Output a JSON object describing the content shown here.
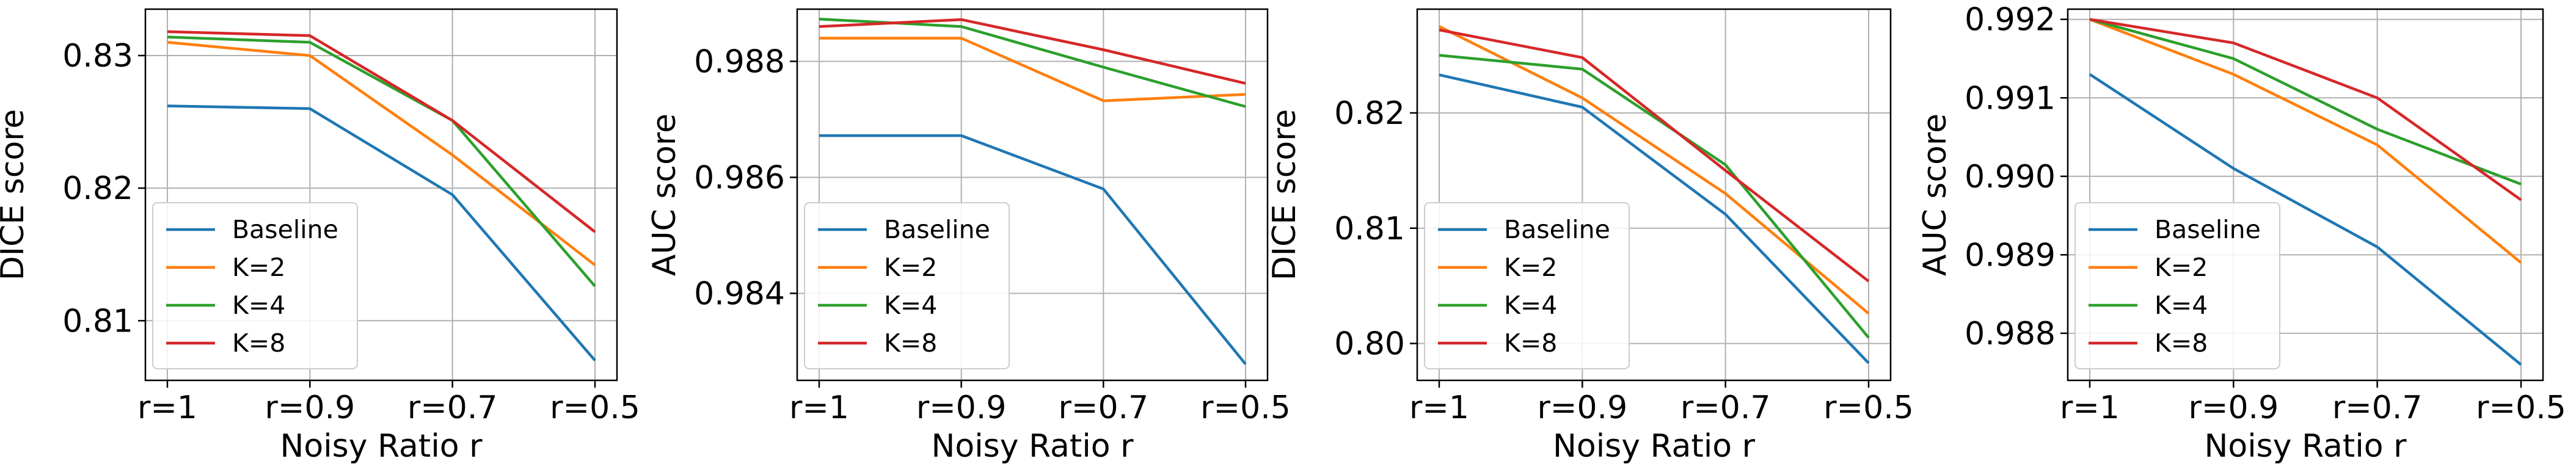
{
  "series_colors": {
    "Baseline": "#1f77b4",
    "K=2": "#ff7f0e",
    "K=4": "#2ca02c",
    "K=8": "#d62728"
  },
  "chart_data": [
    {
      "type": "line",
      "categories": [
        "r=1",
        "r=0.9",
        "r=0.7",
        "r=0.5"
      ],
      "xlabel": "Noisy Ratio r",
      "ylabel": "DICE score",
      "ylim": [
        0.8055,
        0.8335
      ],
      "yticks": [
        0.81,
        0.82,
        0.83
      ],
      "ytick_labels": [
        "0.81",
        "0.82",
        "0.83"
      ],
      "grid": true,
      "legend_position": "lower-left",
      "series": [
        {
          "name": "Baseline",
          "values": [
            0.8262,
            0.826,
            0.8195,
            0.807
          ]
        },
        {
          "name": "K=2",
          "values": [
            0.831,
            0.83,
            0.8225,
            0.8142
          ]
        },
        {
          "name": "K=4",
          "values": [
            0.8314,
            0.831,
            0.8251,
            0.8126
          ]
        },
        {
          "name": "K=8",
          "values": [
            0.8318,
            0.8315,
            0.8251,
            0.8167
          ]
        }
      ]
    },
    {
      "type": "line",
      "categories": [
        "r=1",
        "r=0.9",
        "r=0.7",
        "r=0.5"
      ],
      "xlabel": "Noisy Ratio r",
      "ylabel": "AUC score",
      "ylim": [
        0.9825,
        0.9889
      ],
      "yticks": [
        0.984,
        0.986,
        0.988
      ],
      "ytick_labels": [
        "0.984",
        "0.986",
        "0.988"
      ],
      "grid": true,
      "legend_position": "lower-left",
      "series": [
        {
          "name": "Baseline",
          "values": [
            0.98672,
            0.98672,
            0.9858,
            0.98278
          ]
        },
        {
          "name": "K=2",
          "values": [
            0.9884,
            0.9884,
            0.98732,
            0.98743
          ]
        },
        {
          "name": "K=4",
          "values": [
            0.98873,
            0.9886,
            0.9879,
            0.98722
          ]
        },
        {
          "name": "K=8",
          "values": [
            0.9886,
            0.98872,
            0.9882,
            0.98762
          ]
        }
      ]
    },
    {
      "type": "line",
      "categories": [
        "r=1",
        "r=0.9",
        "r=0.7",
        "r=0.5"
      ],
      "xlabel": "Noisy Ratio r",
      "ylabel": "DICE score",
      "ylim": [
        0.7968,
        0.829
      ],
      "yticks": [
        0.8,
        0.81,
        0.82
      ],
      "ytick_labels": [
        "0.80",
        "0.81",
        "0.82"
      ],
      "grid": true,
      "legend_position": "lower-left",
      "series": [
        {
          "name": "Baseline",
          "values": [
            0.8233,
            0.8205,
            0.8112,
            0.7983
          ]
        },
        {
          "name": "K=2",
          "values": [
            0.8275,
            0.8213,
            0.813,
            0.8026
          ]
        },
        {
          "name": "K=4",
          "values": [
            0.825,
            0.8238,
            0.8155,
            0.8005
          ]
        },
        {
          "name": "K=8",
          "values": [
            0.8272,
            0.8248,
            0.815,
            0.8054
          ]
        }
      ]
    },
    {
      "type": "line",
      "categories": [
        "r=1",
        "r=0.9",
        "r=0.7",
        "r=0.5"
      ],
      "xlabel": "Noisy Ratio r",
      "ylabel": "AUC score",
      "ylim": [
        0.9874,
        0.99213
      ],
      "yticks": [
        0.988,
        0.989,
        0.99,
        0.991,
        0.992
      ],
      "ytick_labels": [
        "0.988",
        "0.989",
        "0.990",
        "0.991",
        "0.992"
      ],
      "grid": true,
      "legend_position": "lower-left",
      "series": [
        {
          "name": "Baseline",
          "values": [
            0.9913,
            0.9901,
            0.9891,
            0.9876
          ]
        },
        {
          "name": "K=2",
          "values": [
            0.992,
            0.9913,
            0.9904,
            0.9889
          ]
        },
        {
          "name": "K=4",
          "values": [
            0.992,
            0.9915,
            0.9906,
            0.9899
          ]
        },
        {
          "name": "K=8",
          "values": [
            0.992,
            0.9917,
            0.991,
            0.9897
          ]
        }
      ]
    }
  ]
}
